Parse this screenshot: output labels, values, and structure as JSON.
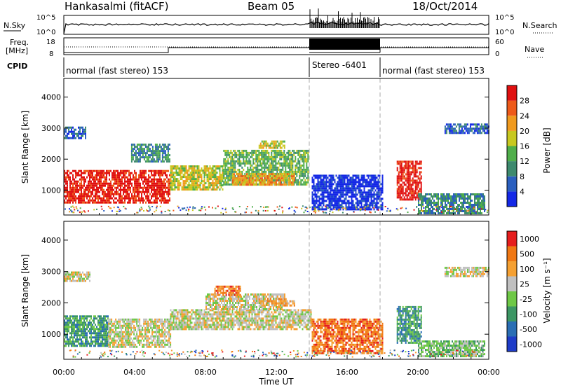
{
  "header": {
    "station": "Hankasalmi (fitACF)",
    "beam": "Beam 05",
    "date": "18/Oct/2014"
  },
  "status_panel": {
    "nsky_label": "N.Sky",
    "nsky_ticks": [
      "10^5",
      "10^0"
    ],
    "nsearch_label": "N.Search",
    "nsearch_ticks": [
      "10^5",
      "10^0"
    ],
    "freq_label": "Freq.",
    "freq_unit": "[MHz]",
    "freq_ticks": [
      "18",
      "8"
    ],
    "nave_label": "Nave",
    "nave_ticks": [
      "60",
      "0"
    ],
    "cpid_label": "CPID",
    "cpid_segments": [
      {
        "label": "normal (fast stereo) 153",
        "start_h": 0,
        "end_h": 14
      },
      {
        "label": "Stereo -6401",
        "start_h": 14,
        "end_h": 18
      },
      {
        "label": "normal (fast stereo) 153",
        "start_h": 18,
        "end_h": 24
      }
    ]
  },
  "chart_data": [
    {
      "type": "heatmap",
      "id": "power",
      "ylabel": "Slant Range [km]",
      "xlabel": "",
      "y_ticks": [
        "1000",
        "2000",
        "3000",
        "4000"
      ],
      "ylim": [
        200,
        4600
      ],
      "xlim_hours": [
        0,
        24
      ],
      "colorbar": {
        "label": "Power [dB]",
        "ticks": [
          "4",
          "8",
          "12",
          "16",
          "20",
          "24",
          "28"
        ],
        "colors": [
          "#1428e6",
          "#2a5fbf",
          "#3d8a6e",
          "#4fae4a",
          "#c8c820",
          "#f09a1e",
          "#ee5a1a",
          "#e01010"
        ]
      },
      "regions": [
        {
          "t0": 0.0,
          "t1": 6.0,
          "r0": 600,
          "r1": 1650,
          "level": 7
        },
        {
          "t0": 6.0,
          "t1": 9.0,
          "r0": 1050,
          "r1": 1800,
          "level": 4
        },
        {
          "t0": 9.0,
          "t1": 13.8,
          "r0": 1200,
          "r1": 2300,
          "level": 3
        },
        {
          "t0": 9.5,
          "t1": 13.0,
          "r0": 1200,
          "r1": 1550,
          "level": 5
        },
        {
          "t0": 11.0,
          "t1": 12.5,
          "r0": 2350,
          "r1": 2600,
          "level": 4
        },
        {
          "t0": 14.0,
          "t1": 18.0,
          "r0": 400,
          "r1": 1500,
          "level": 0
        },
        {
          "t0": 18.8,
          "t1": 20.2,
          "r0": 700,
          "r1": 1950,
          "level": 7
        },
        {
          "t0": 20.0,
          "t1": 23.8,
          "r0": 250,
          "r1": 900,
          "level": 2
        },
        {
          "t0": 21.5,
          "t1": 24.0,
          "r0": 2850,
          "r1": 3150,
          "level": 1
        },
        {
          "t0": 0.0,
          "t1": 1.2,
          "r0": 2700,
          "r1": 3050,
          "level": 1
        },
        {
          "t0": 3.8,
          "t1": 6.0,
          "r0": 1950,
          "r1": 2500,
          "level": 2
        }
      ]
    },
    {
      "type": "heatmap",
      "id": "velocity",
      "ylabel": "Slant Range [km]",
      "xlabel": "Time UT",
      "x_ticks": [
        "00:00",
        "04:00",
        "08:00",
        "12:00",
        "16:00",
        "20:00",
        "00:00"
      ],
      "y_ticks": [
        "1000",
        "2000",
        "3000",
        "4000"
      ],
      "ylim": [
        200,
        4600
      ],
      "xlim_hours": [
        0,
        24
      ],
      "colorbar": {
        "label": "Velocity [m s⁻¹]",
        "ticks": [
          "1000",
          "500",
          "100",
          "25",
          "-25",
          "-100",
          "-500",
          "-1000"
        ],
        "colors": [
          "#1e3cc8",
          "#2a6eb4",
          "#3c9664",
          "#6ec846",
          "#c0c0c0",
          "#f5a032",
          "#f07814",
          "#e61e1e"
        ]
      },
      "regions": [
        {
          "t0": 0.0,
          "t1": 2.5,
          "r0": 650,
          "r1": 1600,
          "level": 2
        },
        {
          "t0": 2.5,
          "t1": 6.0,
          "r0": 600,
          "r1": 1500,
          "level": 4
        },
        {
          "t0": 6.0,
          "t1": 14.0,
          "r0": 1150,
          "r1": 1800,
          "level": 4
        },
        {
          "t0": 8.0,
          "t1": 12.5,
          "r0": 1800,
          "r1": 2300,
          "level": 4
        },
        {
          "t0": 8.5,
          "t1": 10.0,
          "r0": 2250,
          "r1": 2550,
          "level": 6
        },
        {
          "t0": 11.0,
          "t1": 13.0,
          "r0": 1900,
          "r1": 2150,
          "level": 5
        },
        {
          "t0": 14.0,
          "t1": 18.0,
          "r0": 400,
          "r1": 1500,
          "level": 6
        },
        {
          "t0": 18.8,
          "t1": 20.2,
          "r0": 700,
          "r1": 1900,
          "level": 2
        },
        {
          "t0": 20.0,
          "t1": 23.8,
          "r0": 300,
          "r1": 800,
          "level": 3
        },
        {
          "t0": 21.5,
          "t1": 24.0,
          "r0": 2850,
          "r1": 3150,
          "level": 4
        },
        {
          "t0": 0.0,
          "t1": 1.5,
          "r0": 2700,
          "r1": 3000,
          "level": 4
        }
      ]
    }
  ]
}
